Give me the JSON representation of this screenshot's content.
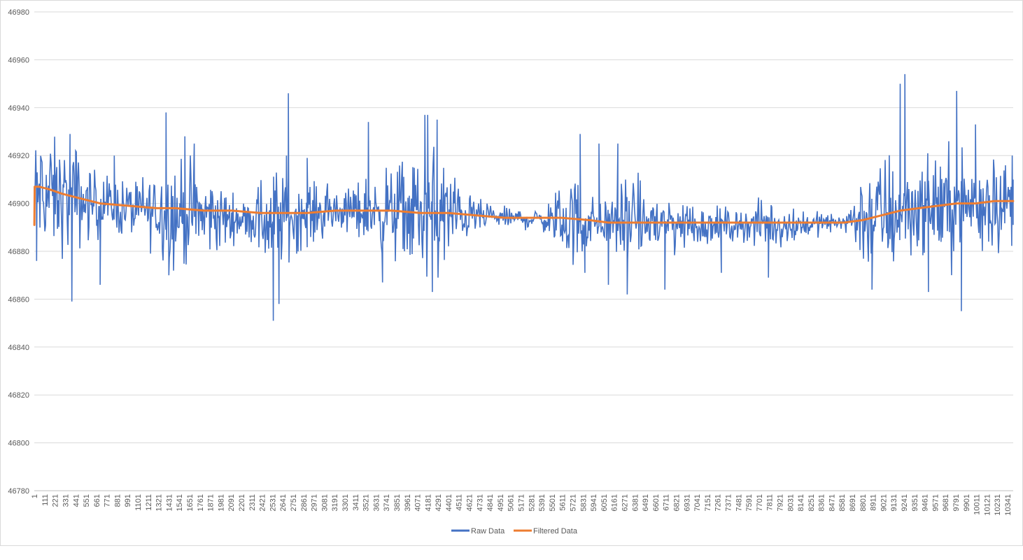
{
  "chart_data": {
    "type": "line",
    "title": "",
    "xlabel": "",
    "ylabel": "",
    "ylim": [
      46780,
      46980
    ],
    "y_ticks": [
      46780,
      46800,
      46820,
      46840,
      46860,
      46880,
      46900,
      46920,
      46940,
      46960,
      46980
    ],
    "x_count": 10400,
    "x_tick_labels": [
      "1",
      "111",
      "221",
      "331",
      "441",
      "551",
      "661",
      "771",
      "881",
      "991",
      "1101",
      "1211",
      "1321",
      "1431",
      "1541",
      "1651",
      "1761",
      "1871",
      "1981",
      "2091",
      "2201",
      "2311",
      "2421",
      "2531",
      "2641",
      "2751",
      "2861",
      "2971",
      "3081",
      "3191",
      "3301",
      "3411",
      "3521",
      "3631",
      "3741",
      "3851",
      "3961",
      "4071",
      "4181",
      "4291",
      "4401",
      "4511",
      "4621",
      "4731",
      "4841",
      "4951",
      "5061",
      "5171",
      "5281",
      "5391",
      "5501",
      "5611",
      "5721",
      "5831",
      "5941",
      "6051",
      "6161",
      "6271",
      "6381",
      "6491",
      "6601",
      "6711",
      "6821",
      "6931",
      "7041",
      "7151",
      "7261",
      "7371",
      "7481",
      "7591",
      "7701",
      "7811",
      "7921",
      "8031",
      "8141",
      "8251",
      "8361",
      "8471",
      "8581",
      "8691",
      "8801",
      "8911",
      "9021",
      "9131",
      "9241",
      "9351",
      "9461",
      "9571",
      "9681",
      "9791",
      "9901",
      "10011",
      "10121",
      "10231",
      "10341"
    ],
    "grid": true,
    "legend_position": "bottom",
    "series": [
      {
        "name": "Raw Data",
        "color": "#4472c4",
        "baseline_x": [
          1,
          300,
          600,
          1000,
          1500,
          2000,
          2500,
          3000,
          3500,
          4000,
          4500,
          5000,
          5500,
          6000,
          6500,
          7000,
          7500,
          8000,
          8500,
          9000,
          9500,
          10000,
          10400
        ],
        "baseline_y": [
          46905,
          46902,
          46900,
          46898,
          46896,
          46894,
          46893,
          46896,
          46897,
          46896,
          46895,
          46894,
          46893,
          46892,
          46892,
          46891,
          46891,
          46891,
          46892,
          46895,
          46899,
          46900,
          46900
        ],
        "noise_x": [
          1,
          400,
          600,
          900,
          1200,
          1500,
          2000,
          2200,
          2500,
          2800,
          3200,
          3600,
          4000,
          4300,
          4600,
          4900,
          5400,
          5700,
          6000,
          6300,
          6700,
          7100,
          7500,
          7800,
          8200,
          8600,
          8800,
          9100,
          9400,
          9700,
          10000,
          10400
        ],
        "noise_amp": [
          8,
          8,
          5,
          4,
          5,
          8,
          5,
          2,
          8,
          5,
          3,
          5,
          8,
          10,
          3,
          1.5,
          1.5,
          7,
          3,
          6,
          5,
          3,
          2,
          4,
          2,
          1,
          7,
          9,
          6,
          8,
          7,
          6
        ],
        "spikes": [
          [
            1,
            46891
          ],
          [
            15,
            46920
          ],
          [
            25,
            46876
          ],
          [
            380,
            46929
          ],
          [
            400,
            46859
          ],
          [
            440,
            46922
          ],
          [
            700,
            46866
          ],
          [
            850,
            46920
          ],
          [
            1400,
            46938
          ],
          [
            1430,
            46870
          ],
          [
            1600,
            46928
          ],
          [
            1700,
            46925
          ],
          [
            2540,
            46851
          ],
          [
            2600,
            46858
          ],
          [
            2680,
            46920
          ],
          [
            2700,
            46946
          ],
          [
            2900,
            46919
          ],
          [
            3550,
            46934
          ],
          [
            3700,
            46867
          ],
          [
            4150,
            46937
          ],
          [
            4180,
            46937
          ],
          [
            4230,
            46863
          ],
          [
            4280,
            46935
          ],
          [
            5800,
            46929
          ],
          [
            5850,
            46871
          ],
          [
            6000,
            46925
          ],
          [
            6100,
            46866
          ],
          [
            6200,
            46925
          ],
          [
            6300,
            46862
          ],
          [
            6700,
            46864
          ],
          [
            7300,
            46871
          ],
          [
            7800,
            46869
          ],
          [
            8900,
            46864
          ],
          [
            9200,
            46950
          ],
          [
            9250,
            46954
          ],
          [
            9500,
            46863
          ],
          [
            9800,
            46947
          ],
          [
            9850,
            46855
          ],
          [
            10000,
            46933
          ],
          [
            10390,
            46920
          ],
          [
            10400,
            46891
          ]
        ]
      },
      {
        "name": "Filtered Data",
        "color": "#ed7d31",
        "x": [
          1,
          5,
          50,
          150,
          300,
          500,
          700,
          1000,
          1300,
          1500,
          1800,
          2100,
          2400,
          2600,
          2900,
          3200,
          3500,
          3800,
          4100,
          4400,
          4700,
          5000,
          5300,
          5600,
          5900,
          6100,
          6300,
          6600,
          6900,
          7200,
          7500,
          7800,
          8100,
          8400,
          8600,
          8800,
          9000,
          9200,
          9400,
          9600,
          9800,
          10000,
          10200,
          10400
        ],
        "y": [
          46891,
          46907,
          46907,
          46906,
          46904,
          46902,
          46900,
          46899,
          46898,
          46898,
          46897,
          46897,
          46896,
          46896,
          46896,
          46897,
          46897,
          46897,
          46896,
          46896,
          46895,
          46894,
          46894,
          46894,
          46893,
          46892,
          46892,
          46892,
          46892,
          46892,
          46892,
          46892,
          46892,
          46892,
          46892,
          46893,
          46895,
          46897,
          46898,
          46899,
          46900,
          46900,
          46901,
          46901
        ]
      }
    ]
  }
}
